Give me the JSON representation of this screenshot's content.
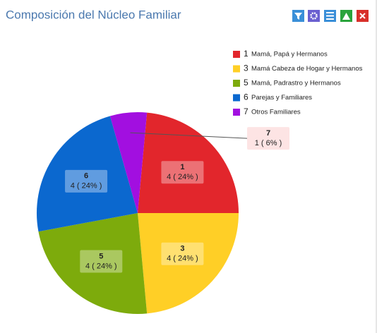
{
  "chart_data": {
    "type": "pie",
    "title": "Composición del Núcleo Familiar",
    "categories": [
      "1",
      "3",
      "5",
      "6",
      "7"
    ],
    "category_names": [
      "Mamá, Papá y Hermanos",
      "Mamá Cabeza de Hogar y Hermanos",
      "Mamá, Padrastro y Hermanos",
      "Parejas y Familiares",
      "Otros Familiares"
    ],
    "values": [
      4,
      4,
      4,
      4,
      1
    ],
    "value_labels": [
      "4 ( 24% )",
      "4 ( 24% )",
      "4 ( 24% )",
      "4 ( 24% )",
      "1 ( 6% )"
    ],
    "colors": [
      "#e2262c",
      "#ffcf26",
      "#7dab0c",
      "#0b68cf",
      "#a20fe0"
    ],
    "legend": "top-right"
  }
}
